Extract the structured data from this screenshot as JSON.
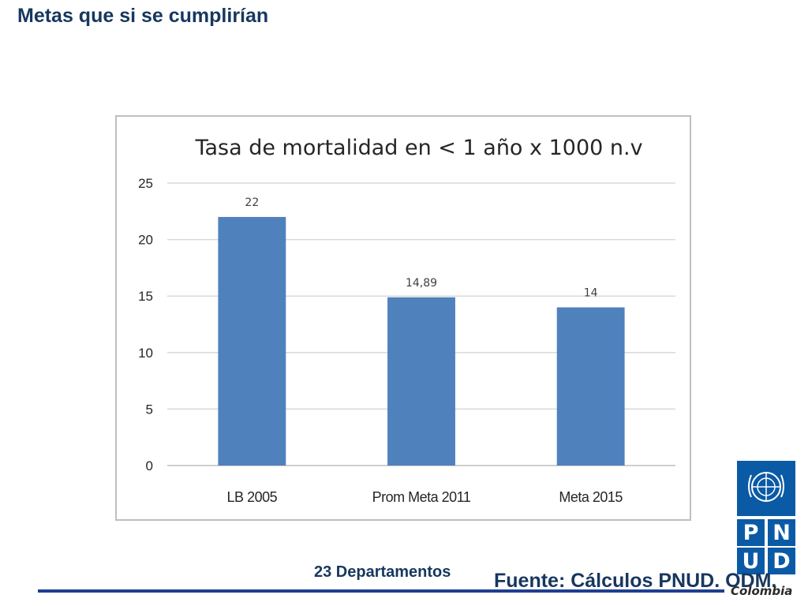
{
  "slide": {
    "title": "Metas que si se cumplirían",
    "footer_note": "23 Departamentos",
    "source": "Fuente: Cálculos PNUD. ODM."
  },
  "logo": {
    "letters": [
      "P",
      "N",
      "U",
      "D"
    ],
    "country": "Colombia",
    "brand_color": "#0a5aa6"
  },
  "chart_data": {
    "type": "bar",
    "title": "Tasa de mortalidad en < 1 año x 1000 n.v",
    "categories": [
      "LB 2005",
      "Prom Meta 2011",
      "Meta 2015"
    ],
    "values": [
      22,
      14.89,
      14
    ],
    "data_labels": [
      "22",
      "14,89",
      "14"
    ],
    "yticks": [
      0,
      5,
      10,
      15,
      20,
      25
    ],
    "ylim": [
      0,
      25
    ],
    "grid": true,
    "legend": "none",
    "bar_color": "#4f81bd"
  }
}
